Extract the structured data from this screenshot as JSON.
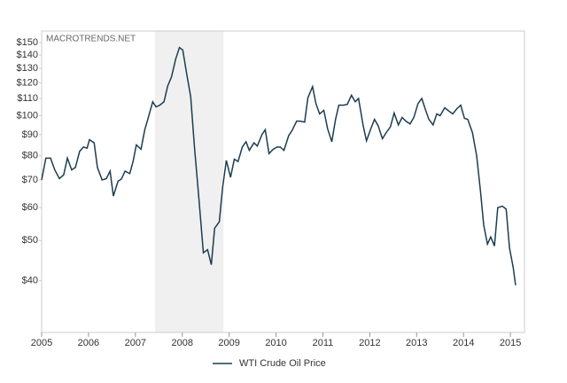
{
  "chart_data": {
    "type": "line",
    "watermark": "MACROTRENDS.NET",
    "log_scale": true,
    "grid": false,
    "legend": "bottom",
    "shaded_region": [
      2007.42,
      2008.88
    ],
    "xlim": [
      2005,
      2015.3
    ],
    "xticks": [
      2005,
      2006,
      2007,
      2008,
      2009,
      2010,
      2011,
      2012,
      2013,
      2014,
      2015
    ],
    "ylim": [
      30,
      160
    ],
    "yticks": [
      {
        "value": 40,
        "label": "$40"
      },
      {
        "value": 50,
        "label": "$50"
      },
      {
        "value": 60,
        "label": "$60"
      },
      {
        "value": 70,
        "label": "$70"
      },
      {
        "value": 80,
        "label": "$80"
      },
      {
        "value": 90,
        "label": "$90"
      },
      {
        "value": 100,
        "label": "$100"
      },
      {
        "value": 110,
        "label": "$110"
      },
      {
        "value": 120,
        "label": "$120"
      },
      {
        "value": 130,
        "label": "$130"
      },
      {
        "value": 140,
        "label": "$140"
      },
      {
        "value": 150,
        "label": "$150"
      }
    ],
    "x": [
      2005.0,
      2005.09,
      2005.19,
      2005.28,
      2005.38,
      2005.47,
      2005.55,
      2005.64,
      2005.72,
      2005.81,
      2005.89,
      2005.97,
      2006.02,
      2006.12,
      2006.19,
      2006.29,
      2006.38,
      2006.46,
      2006.53,
      2006.63,
      2006.7,
      2006.78,
      2006.88,
      2006.95,
      2007.02,
      2007.12,
      2007.2,
      2007.27,
      2007.37,
      2007.44,
      2007.52,
      2007.61,
      2007.69,
      2007.77,
      2007.86,
      2007.94,
      2008.01,
      2008.09,
      2008.18,
      2008.26,
      2008.35,
      2008.45,
      2008.54,
      2008.62,
      2008.69,
      2008.79,
      2008.86,
      2008.94,
      2009.03,
      2009.11,
      2009.19,
      2009.28,
      2009.36,
      2009.43,
      2009.53,
      2009.6,
      2009.7,
      2009.77,
      2009.85,
      2009.94,
      2010.02,
      2010.09,
      2010.17,
      2010.27,
      2010.34,
      2010.44,
      2010.51,
      2010.61,
      2010.68,
      2010.78,
      2010.85,
      2010.93,
      2011.02,
      2011.1,
      2011.19,
      2011.27,
      2011.34,
      2011.44,
      2011.52,
      2011.61,
      2011.69,
      2011.76,
      2011.86,
      2011.93,
      2012.03,
      2012.1,
      2012.18,
      2012.27,
      2012.35,
      2012.44,
      2012.52,
      2012.61,
      2012.69,
      2012.77,
      2012.86,
      2012.94,
      2013.03,
      2013.11,
      2013.18,
      2013.26,
      2013.35,
      2013.43,
      2013.5,
      2013.6,
      2013.69,
      2013.77,
      2013.86,
      2013.94,
      2014.02,
      2014.09,
      2014.19,
      2014.28,
      2014.36,
      2014.43,
      2014.51,
      2014.58,
      2014.66,
      2014.73,
      2014.83,
      2014.91,
      2014.98,
      2015.06,
      2015.11
    ],
    "series": [
      {
        "name": "WTI Crude Oil Price",
        "color": "#1c3d50",
        "values": [
          70,
          79,
          79,
          74,
          70.5,
          72,
          79,
          74,
          75,
          82,
          84,
          83.5,
          87.5,
          86,
          75,
          70,
          70.5,
          73.5,
          64,
          69.5,
          70.3,
          73.5,
          72.5,
          77.5,
          85,
          83,
          92.5,
          98.5,
          108,
          105,
          106,
          108,
          118,
          124,
          137,
          146,
          144,
          127,
          111,
          84,
          64,
          46.7,
          47.5,
          43.7,
          53.5,
          55.5,
          67,
          78,
          71,
          78.5,
          77.5,
          84,
          86.5,
          82.5,
          86,
          84.5,
          90,
          92.5,
          81,
          83,
          84,
          84,
          82.5,
          89.5,
          92,
          97,
          97,
          96.5,
          110.5,
          117.5,
          107,
          101,
          103,
          93,
          86.5,
          98,
          106,
          106,
          106.5,
          112,
          108,
          110,
          94.5,
          87,
          93.5,
          98,
          94.5,
          88,
          91,
          94,
          101.5,
          95,
          99,
          97,
          95.5,
          99,
          107,
          110,
          104,
          98,
          95,
          101,
          100,
          104.5,
          102.5,
          101,
          104,
          106,
          98.5,
          98,
          91,
          80,
          66,
          54.5,
          49,
          51,
          48.5,
          60,
          60.5,
          59.5,
          48,
          43,
          39
        ]
      }
    ]
  }
}
